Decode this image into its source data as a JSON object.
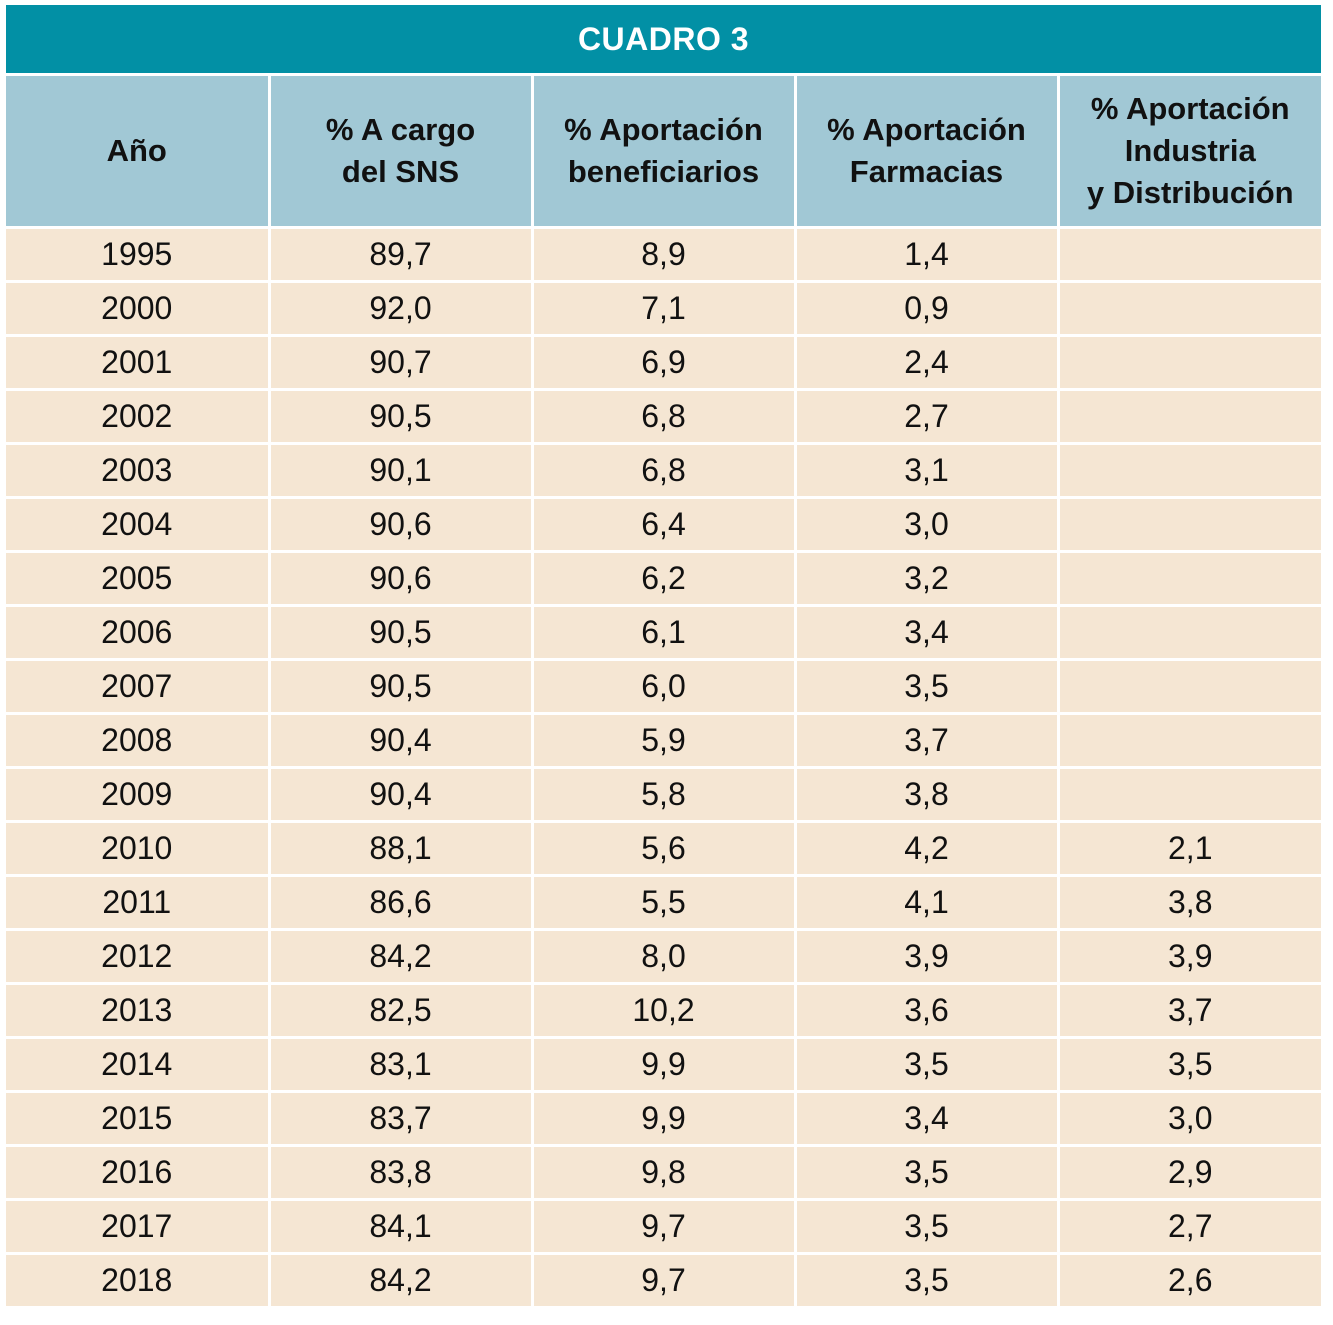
{
  "title": "CUADRO 3",
  "headers": [
    [
      "Año"
    ],
    [
      "% A cargo",
      "del SNS"
    ],
    [
      "% Aportación",
      "beneficiarios"
    ],
    [
      "% Aportación",
      "Farmacias"
    ],
    [
      "% Aportación",
      "Industria",
      "y Distribución"
    ]
  ],
  "rows": [
    [
      "1995",
      "89,7",
      "8,9",
      "1,4",
      ""
    ],
    [
      "2000",
      "92,0",
      "7,1",
      "0,9",
      ""
    ],
    [
      "2001",
      "90,7",
      "6,9",
      "2,4",
      ""
    ],
    [
      "2002",
      "90,5",
      "6,8",
      "2,7",
      ""
    ],
    [
      "2003",
      "90,1",
      "6,8",
      "3,1",
      ""
    ],
    [
      "2004",
      "90,6",
      "6,4",
      "3,0",
      ""
    ],
    [
      "2005",
      "90,6",
      "6,2",
      "3,2",
      ""
    ],
    [
      "2006",
      "90,5",
      "6,1",
      "3,4",
      ""
    ],
    [
      "2007",
      "90,5",
      "6,0",
      "3,5",
      ""
    ],
    [
      "2008",
      "90,4",
      "5,9",
      "3,7",
      ""
    ],
    [
      "2009",
      "90,4",
      "5,8",
      "3,8",
      ""
    ],
    [
      "2010",
      "88,1",
      "5,6",
      "4,2",
      "2,1"
    ],
    [
      "2011",
      "86,6",
      "5,5",
      "4,1",
      "3,8"
    ],
    [
      "2012",
      "84,2",
      "8,0",
      "3,9",
      "3,9"
    ],
    [
      "2013",
      "82,5",
      "10,2",
      "3,6",
      "3,7"
    ],
    [
      "2014",
      "83,1",
      "9,9",
      "3,5",
      "3,5"
    ],
    [
      "2015",
      "83,7",
      "9,9",
      "3,4",
      "3,0"
    ],
    [
      "2016",
      "83,8",
      "9,8",
      "3,5",
      "2,9"
    ],
    [
      "2017",
      "84,1",
      "9,7",
      "3,5",
      "2,7"
    ],
    [
      "2018",
      "84,2",
      "9,7",
      "3,5",
      "2,6"
    ]
  ],
  "colors": {
    "title_bg": "#0290a5",
    "header_bg": "#a1c8d5",
    "body_bg": "#f5e6d3"
  }
}
